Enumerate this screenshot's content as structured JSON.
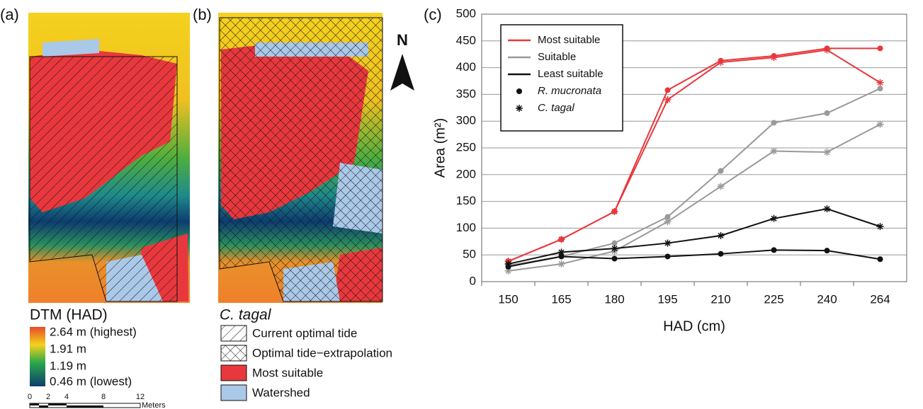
{
  "maps": {
    "panel_a": "(a)",
    "panel_b": "(b)",
    "north": "N",
    "dtm_title": "DTM (HAD)",
    "dtm_labels": [
      "2.64 m (highest)",
      "1.91 m",
      "1.19 m",
      "0.46 m (lowest)"
    ],
    "scale_labels": [
      "0",
      "2",
      "4",
      "8",
      "12"
    ],
    "scale_unit": "Meters",
    "species_title": "C. tagal",
    "species_legend": [
      "Current optimal tide",
      "Optimal tide−extrapolation",
      "Most suitable",
      "Watershed"
    ]
  },
  "chart_data": {
    "type": "line",
    "panel_label": "(c)",
    "xlabel": "HAD (cm)",
    "ylabel": "Area (m²)",
    "categories": [
      "150",
      "165",
      "180",
      "195",
      "210",
      "225",
      "240",
      "264"
    ],
    "ylim": [
      0,
      500
    ],
    "yticks": [
      0,
      50,
      100,
      150,
      200,
      250,
      300,
      350,
      400,
      450,
      500
    ],
    "grid": true,
    "markers": [
      {
        "name": "R. mucronata",
        "marker": "dot"
      },
      {
        "name": "C. tagal",
        "marker": "star"
      }
    ],
    "classes": [
      {
        "name": "Most suitable",
        "color": "#e8383d",
        "values": [
          [
            38,
            79,
            131,
            358,
            413,
            422,
            436,
            436
          ],
          [
            38,
            79,
            131,
            340,
            410,
            419,
            433,
            372
          ]
        ]
      },
      {
        "name": "Suitable",
        "color": "#999999",
        "values": [
          [
            30,
            47,
            72,
            121,
            207,
            297,
            315,
            361
          ],
          [
            20,
            33,
            57,
            112,
            178,
            244,
            242,
            294
          ]
        ]
      },
      {
        "name": "Least suitable",
        "color": "#111111",
        "values": [
          [
            28,
            47,
            43,
            47,
            52,
            59,
            58,
            42
          ],
          [
            33,
            55,
            62,
            72,
            86,
            118,
            136,
            103
          ]
        ]
      }
    ]
  }
}
